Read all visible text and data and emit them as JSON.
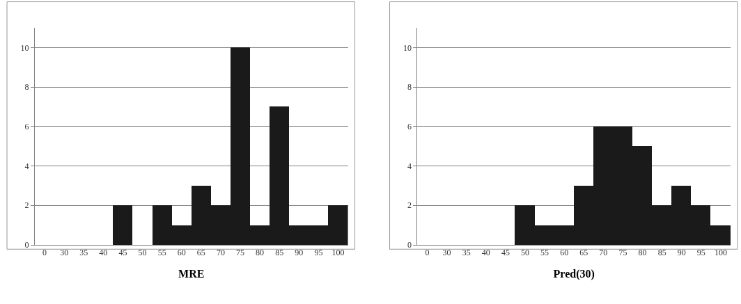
{
  "chart_data": [
    {
      "type": "bar",
      "xlabel": "MRE",
      "categories": [
        "0",
        "30",
        "35",
        "40",
        "45",
        "50",
        "55",
        "60",
        "65",
        "70",
        "75",
        "80",
        "85",
        "90",
        "95",
        "100"
      ],
      "values": [
        0,
        0,
        0,
        0,
        2,
        0,
        2,
        1,
        3,
        2,
        10,
        1,
        7,
        1,
        1,
        2
      ],
      "color": "#1a1a1a",
      "ylim": [
        0,
        11
      ],
      "yticks": [
        0,
        2,
        4,
        6,
        8,
        10
      ],
      "grid": "y"
    },
    {
      "type": "bar",
      "xlabel": "Pred(30)",
      "categories": [
        "0",
        "30",
        "35",
        "40",
        "45",
        "50",
        "55",
        "60",
        "65",
        "70",
        "75",
        "80",
        "85",
        "90",
        "95",
        "100"
      ],
      "values": [
        0,
        0,
        0,
        0,
        0,
        2,
        1,
        1,
        3,
        6,
        6,
        5,
        2,
        3,
        2,
        1
      ],
      "color": "#1a1a1a",
      "ylim": [
        0,
        11
      ],
      "yticks": [
        0,
        2,
        4,
        6,
        8,
        10
      ],
      "grid": "y"
    }
  ]
}
